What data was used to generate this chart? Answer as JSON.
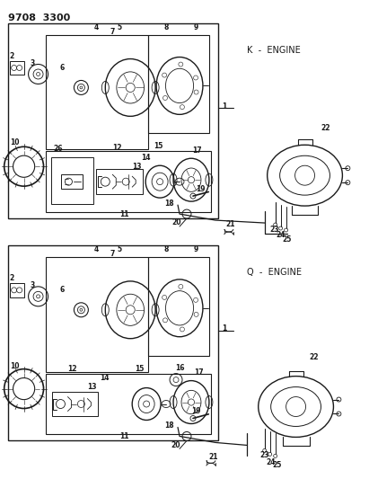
{
  "title": "9708  3300",
  "bg_color": "#ffffff",
  "line_color": "#1a1a1a",
  "text_color": "#1a1a1a",
  "k_engine_label": "K  -  ENGINE",
  "q_engine_label": "Q  -  ENGINE",
  "fig_width": 4.11,
  "fig_height": 5.33,
  "dpi": 100
}
